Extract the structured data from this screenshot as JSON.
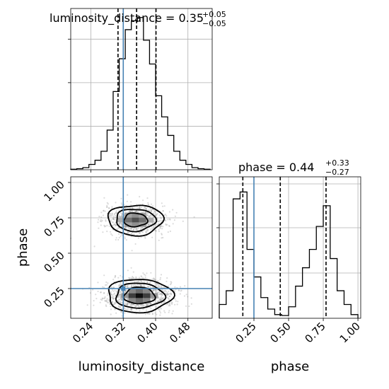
{
  "colors": {
    "truth": "#4682b4",
    "line": "#000000",
    "grid": "#b0b0b0",
    "scatter": "#9a9a9a"
  },
  "chart_data": {
    "type": "corner",
    "parameters": [
      "luminosity_distance",
      "phase"
    ],
    "truths": {
      "luminosity_distance": 0.32,
      "phase": 0.25
    },
    "grid": true,
    "panels": {
      "luminosity_distance_hist": {
        "type": "histogram",
        "title": "luminosity_distance = 0.35",
        "title_sup": "+0.05",
        "title_sub": "−0.05",
        "xlim": [
          0.19,
          0.54
        ],
        "bin_edges": [
          0.19,
          0.205,
          0.22,
          0.235,
          0.25,
          0.265,
          0.28,
          0.295,
          0.31,
          0.325,
          0.34,
          0.355,
          0.37,
          0.385,
          0.4,
          0.415,
          0.43,
          0.445,
          0.46,
          0.475,
          0.49,
          0.505,
          0.52,
          0.535
        ],
        "counts": [
          1,
          2,
          4,
          10,
          18,
          35,
          75,
          148,
          210,
          265,
          282,
          288,
          245,
          200,
          140,
          100,
          65,
          35,
          18,
          10,
          4,
          2,
          1
        ],
        "quantiles": [
          0.307,
          0.353,
          0.401
        ]
      },
      "phase_hist": {
        "type": "histogram",
        "title": "phase = 0.44",
        "title_sup": "+0.33",
        "title_sub": "−0.27",
        "xlim": [
          0.0,
          1.02
        ],
        "xticks": [
          "0.25",
          "0.50",
          "0.75",
          "1.00"
        ],
        "xlabel": "phase",
        "bin_edges": [
          0.0,
          0.05,
          0.1,
          0.15,
          0.2,
          0.25,
          0.3,
          0.35,
          0.4,
          0.45,
          0.5,
          0.55,
          0.6,
          0.65,
          0.7,
          0.75,
          0.8,
          0.85,
          0.9,
          0.95,
          1.0
        ],
        "counts": [
          30,
          60,
          260,
          275,
          150,
          90,
          45,
          20,
          8,
          6,
          25,
          70,
          110,
          150,
          200,
          245,
          130,
          60,
          30,
          8
        ],
        "quantiles": [
          0.17,
          0.44,
          0.77
        ]
      },
      "joint": {
        "type": "2d-density",
        "xlabel": "luminosity_distance",
        "ylabel": "phase",
        "xlim": [
          0.19,
          0.54
        ],
        "ylim": [
          0.04,
          1.04
        ],
        "xticks": [
          "0.24",
          "0.32",
          "0.40",
          "0.48"
        ],
        "yticks": [
          "0.25",
          "0.50",
          "0.75",
          "1.00"
        ],
        "modes": [
          {
            "center_x": 0.35,
            "center_y": 0.735,
            "contours": [
              [
                0.068,
                0.107
              ],
              [
                0.049,
                0.078
              ],
              [
                0.029,
                0.048
              ]
            ]
          },
          {
            "center_x": 0.36,
            "center_y": 0.2,
            "contours": [
              [
                0.08,
                0.118
              ],
              [
                0.06,
                0.088
              ],
              [
                0.038,
                0.058
              ]
            ]
          }
        ]
      }
    }
  }
}
